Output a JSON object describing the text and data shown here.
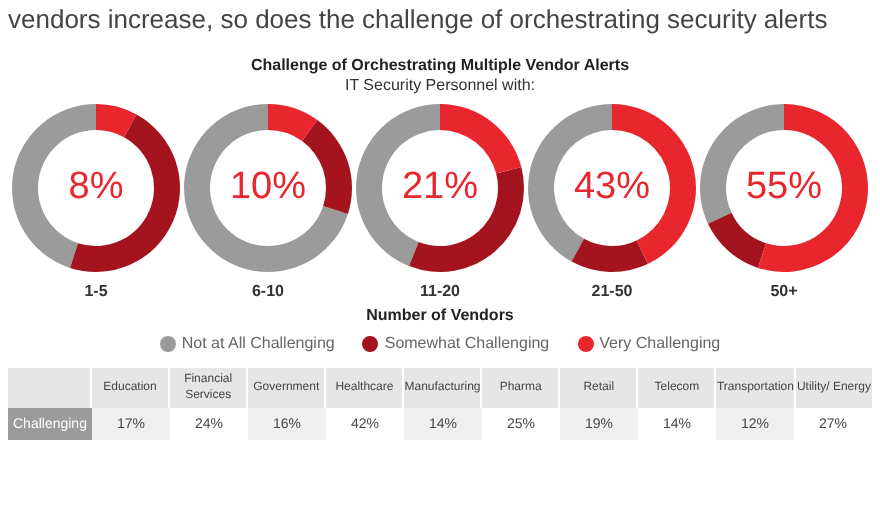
{
  "chart_data": [
    {
      "type": "other",
      "title": "vendors increase, so does the challenge of orchestrating security alerts",
      "subtitle": "Challenge of Orchestrating Multiple Vendor Alerts",
      "annotations": [
        "IT Security Personnel with:",
        "Number of Vendors"
      ]
    },
    {
      "type": "donut",
      "title": "1-5",
      "categories": [
        "Not at All Challenging",
        "Somewhat Challenging",
        "Very Challenging"
      ],
      "values": [
        45,
        47,
        8
      ],
      "colors": [
        "#9b9b9b",
        "#a3141e",
        "#e8262e"
      ],
      "annotations": [
        "8%"
      ],
      "legend": "bottom"
    },
    {
      "type": "donut",
      "title": "6-10",
      "values": [
        70,
        20,
        10
      ],
      "colors": [
        "#9b9b9b",
        "#a3141e",
        "#e8262e"
      ],
      "annotations": [
        "10%"
      ]
    },
    {
      "type": "donut",
      "title": "11-20",
      "values": [
        44,
        35,
        21
      ],
      "colors": [
        "#9b9b9b",
        "#a3141e",
        "#e8262e"
      ],
      "annotations": [
        "21%"
      ]
    },
    {
      "type": "donut",
      "title": "21-50",
      "values": [
        42,
        15,
        43
      ],
      "colors": [
        "#9b9b9b",
        "#a3141e",
        "#e8262e"
      ],
      "annotations": [
        "43%"
      ]
    },
    {
      "type": "donut",
      "title": "50+",
      "values": [
        32,
        13,
        55
      ],
      "colors": [
        "#9b9b9b",
        "#a3141e",
        "#e8262e"
      ],
      "annotations": [
        "55%"
      ]
    },
    {
      "type": "other",
      "ylabel": "Challenging",
      "categories": [
        "Education",
        "Financial Services",
        "Government",
        "Healthcare",
        "Manufacturing",
        "Pharma",
        "Retail",
        "Telecom",
        "Transportation",
        "Utility/ Energy"
      ],
      "values": [
        17,
        24,
        16,
        42,
        14,
        25,
        19,
        14,
        12,
        27
      ],
      "value_labels": [
        "17%",
        "24%",
        "16%",
        "42%",
        "14%",
        "25%",
        "19%",
        "14%",
        "12%",
        "27%"
      ]
    }
  ]
}
